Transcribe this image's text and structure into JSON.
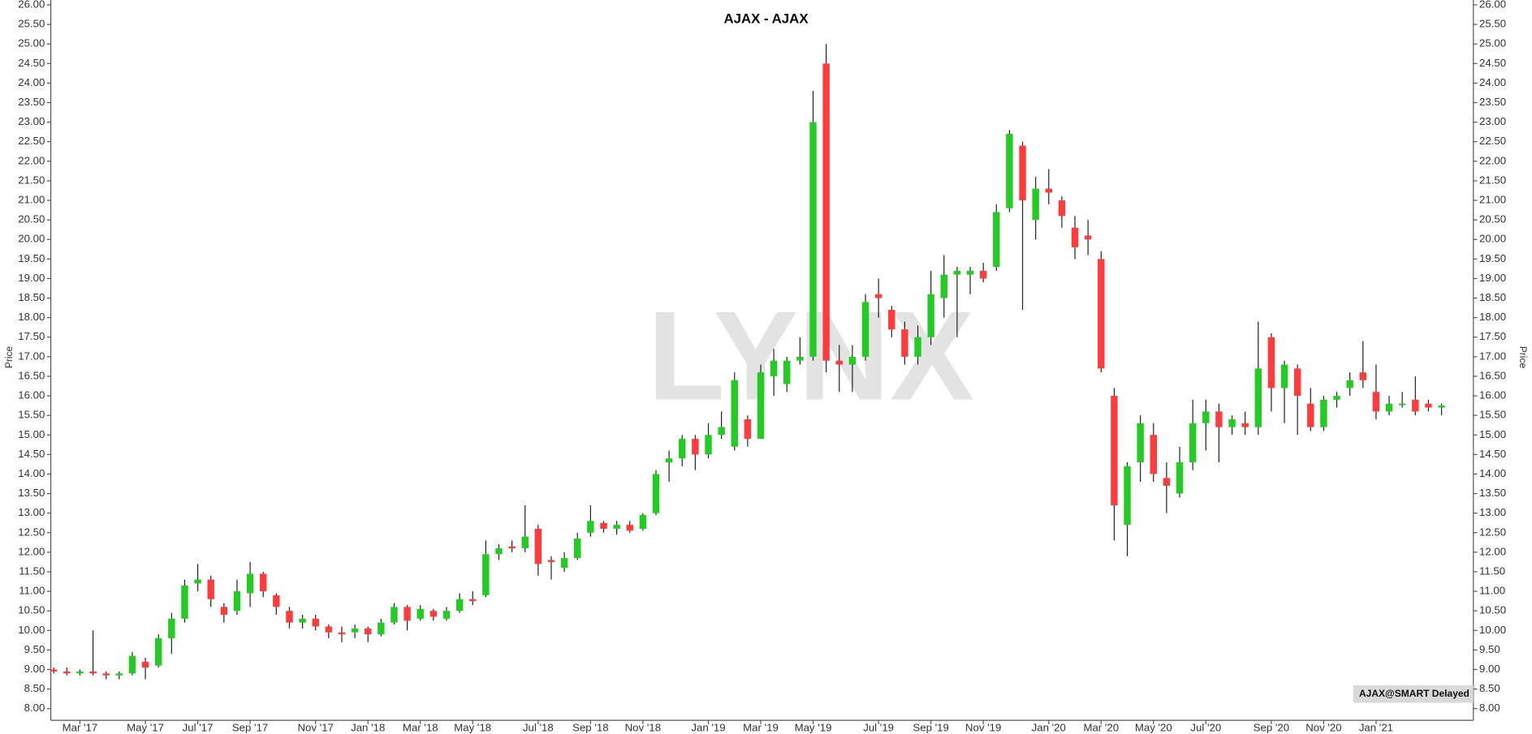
{
  "chart_data": {
    "type": "candlestick",
    "title": "AJAX - AJAX",
    "y_label": "Price",
    "watermark": "LYNX",
    "badge": "AJAX@SMART Delayed",
    "up_color": "#22cc22",
    "down_color": "#ff3b3b",
    "categories": [
      null,
      null,
      "Mar '17",
      null,
      null,
      null,
      null,
      "May '17",
      null,
      null,
      null,
      "Jul '17",
      null,
      null,
      null,
      "Sep '17",
      null,
      null,
      null,
      null,
      "Nov '17",
      null,
      null,
      null,
      "Jan '18",
      null,
      null,
      null,
      "Mar '18",
      null,
      null,
      null,
      "May '18",
      null,
      null,
      null,
      null,
      "Jul '18",
      null,
      null,
      null,
      "Sep '18",
      null,
      null,
      null,
      "Nov '18",
      null,
      null,
      null,
      null,
      "Jan '19",
      null,
      null,
      null,
      "Mar '19",
      null,
      null,
      null,
      "May '19",
      null,
      null,
      null,
      null,
      "Jul '19",
      null,
      null,
      null,
      "Sep '19",
      null,
      null,
      null,
      "Nov '19",
      null,
      null,
      null,
      null,
      "Jan '20",
      null,
      null,
      null,
      "Mar '20",
      null,
      null,
      null,
      "May '20",
      null,
      null,
      null,
      "Jul '20",
      null,
      null,
      null,
      null,
      "Sep '20",
      null,
      null,
      null,
      "Nov '20",
      null,
      null,
      null,
      "Jan '21",
      null,
      null,
      null,
      null,
      null
    ],
    "open": [
      9.0,
      8.95,
      8.9,
      8.95,
      8.9,
      8.85,
      8.9,
      9.2,
      9.1,
      9.8,
      10.3,
      11.2,
      11.3,
      10.6,
      10.5,
      10.95,
      11.45,
      10.9,
      10.5,
      10.2,
      10.3,
      10.1,
      9.95,
      9.95,
      10.05,
      9.9,
      10.2,
      10.6,
      10.3,
      10.5,
      10.3,
      10.5,
      10.8,
      10.9,
      11.95,
      12.15,
      12.1,
      12.6,
      11.8,
      11.6,
      11.85,
      12.5,
      12.75,
      12.6,
      12.7,
      12.6,
      13.0,
      14.3,
      14.4,
      14.9,
      14.5,
      15.0,
      14.7,
      15.4,
      14.9,
      16.5,
      16.3,
      16.9,
      17.0,
      24.5,
      16.9,
      16.8,
      17.0,
      18.6,
      18.2,
      17.7,
      17.0,
      17.5,
      18.5,
      19.1,
      19.1,
      19.2,
      19.3,
      20.8,
      22.4,
      20.5,
      21.3,
      21.0,
      20.3,
      20.1,
      19.5,
      16.0,
      12.7,
      14.3,
      15.0,
      13.9,
      13.5,
      14.3,
      15.3,
      15.6,
      15.2,
      15.3,
      15.2,
      17.5,
      16.2,
      16.7,
      15.8,
      15.2,
      15.9,
      16.2,
      16.6,
      16.1,
      15.6,
      15.8,
      15.9,
      15.8,
      15.7
    ],
    "high": [
      9.05,
      9.05,
      9.0,
      10.0,
      8.95,
      8.95,
      9.45,
      9.3,
      9.9,
      10.45,
      11.3,
      11.7,
      11.4,
      10.7,
      11.3,
      11.75,
      11.5,
      10.95,
      10.6,
      10.4,
      10.4,
      10.15,
      10.1,
      10.15,
      10.1,
      10.3,
      10.7,
      10.65,
      10.65,
      10.55,
      10.6,
      10.95,
      11.0,
      12.3,
      12.2,
      12.3,
      13.2,
      12.7,
      11.9,
      12.0,
      12.5,
      13.2,
      12.8,
      12.8,
      12.8,
      13.0,
      14.1,
      14.6,
      15.0,
      15.0,
      15.3,
      15.6,
      16.6,
      15.5,
      16.8,
      17.2,
      17.0,
      17.5,
      23.8,
      25.0,
      17.3,
      17.3,
      18.6,
      19.0,
      18.3,
      17.9,
      17.8,
      19.2,
      19.6,
      19.3,
      19.3,
      19.4,
      20.9,
      22.8,
      22.5,
      21.6,
      21.8,
      21.1,
      20.6,
      20.5,
      19.7,
      16.2,
      14.3,
      15.5,
      15.3,
      14.3,
      14.7,
      15.9,
      15.9,
      15.8,
      15.5,
      15.6,
      17.9,
      17.6,
      16.9,
      16.8,
      16.2,
      16.0,
      16.1,
      16.6,
      17.4,
      16.8,
      16.0,
      16.1,
      16.5,
      15.9,
      15.8
    ],
    "low": [
      8.9,
      8.85,
      8.85,
      8.85,
      8.75,
      8.75,
      8.85,
      8.75,
      9.05,
      9.4,
      10.2,
      11.0,
      10.6,
      10.2,
      10.4,
      10.6,
      10.85,
      10.4,
      10.05,
      10.05,
      10.0,
      9.8,
      9.7,
      9.8,
      9.7,
      9.85,
      10.15,
      10.0,
      10.25,
      10.25,
      10.25,
      10.45,
      10.65,
      10.85,
      11.8,
      12.0,
      12.0,
      11.4,
      11.3,
      11.5,
      11.8,
      12.4,
      12.5,
      12.45,
      12.5,
      12.55,
      12.95,
      13.8,
      14.2,
      14.1,
      14.4,
      14.9,
      14.6,
      14.7,
      14.9,
      16.0,
      16.1,
      16.8,
      16.9,
      16.6,
      16.1,
      16.1,
      16.9,
      18.0,
      17.5,
      16.8,
      16.8,
      17.3,
      18.0,
      17.5,
      18.6,
      18.9,
      19.2,
      20.7,
      18.2,
      20.0,
      20.9,
      20.3,
      19.5,
      19.6,
      16.6,
      12.3,
      11.9,
      13.8,
      13.8,
      13.0,
      13.4,
      14.1,
      14.6,
      14.3,
      15.0,
      15.0,
      15.0,
      15.6,
      15.3,
      15.0,
      15.1,
      15.1,
      15.7,
      16.0,
      16.2,
      15.4,
      15.5,
      15.7,
      15.5,
      15.6,
      15.5
    ],
    "close": [
      8.95,
      8.9,
      8.95,
      8.9,
      8.85,
      8.9,
      9.35,
      9.05,
      9.8,
      10.3,
      11.15,
      11.3,
      10.8,
      10.4,
      11.0,
      11.45,
      11.0,
      10.6,
      10.2,
      10.3,
      10.1,
      9.95,
      9.9,
      10.05,
      9.9,
      10.2,
      10.6,
      10.25,
      10.55,
      10.35,
      10.5,
      10.8,
      10.75,
      11.95,
      12.1,
      12.1,
      12.4,
      11.7,
      11.75,
      11.85,
      12.35,
      12.8,
      12.6,
      12.7,
      12.55,
      12.95,
      14.0,
      14.4,
      14.9,
      14.5,
      15.0,
      15.2,
      16.4,
      14.9,
      16.6,
      16.9,
      16.9,
      17.0,
      23.0,
      16.9,
      16.8,
      17.0,
      18.4,
      18.5,
      17.7,
      17.0,
      17.5,
      18.6,
      19.1,
      19.2,
      19.2,
      19.0,
      20.7,
      22.7,
      21.0,
      21.3,
      21.2,
      20.6,
      19.8,
      20.0,
      16.7,
      13.2,
      14.2,
      15.3,
      14.0,
      13.7,
      14.3,
      15.3,
      15.6,
      15.2,
      15.4,
      15.2,
      16.7,
      16.2,
      16.8,
      16.0,
      15.2,
      15.9,
      16.0,
      16.4,
      16.4,
      15.6,
      15.8,
      15.8,
      15.6,
      15.7,
      15.75
    ],
    "ylim": [
      7.7,
      26
    ],
    "yticks": [
      {
        "value": 8,
        "label": "8.00"
      },
      {
        "value": 8.5,
        "label": "8.50"
      },
      {
        "value": 9,
        "label": "9.00"
      },
      {
        "value": 9.5,
        "label": "9.50"
      },
      {
        "value": 10,
        "label": "10.00"
      },
      {
        "value": 10.5,
        "label": "10.50"
      },
      {
        "value": 11,
        "label": "11.00"
      },
      {
        "value": 11.5,
        "label": "11.50"
      },
      {
        "value": 12,
        "label": "12.00"
      },
      {
        "value": 12.5,
        "label": "12.50"
      },
      {
        "value": 13,
        "label": "13.00"
      },
      {
        "value": 13.5,
        "label": "13.50"
      },
      {
        "value": 14,
        "label": "14.00"
      },
      {
        "value": 14.5,
        "label": "14.50"
      },
      {
        "value": 15,
        "label": "15.00"
      },
      {
        "value": 15.5,
        "label": "15.50"
      },
      {
        "value": 16,
        "label": "16.00"
      },
      {
        "value": 16.5,
        "label": "16.50"
      },
      {
        "value": 17,
        "label": "17.00"
      },
      {
        "value": 17.5,
        "label": "17.50"
      },
      {
        "value": 18,
        "label": "18.00"
      },
      {
        "value": 18.5,
        "label": "18.50"
      },
      {
        "value": 19,
        "label": "19.00"
      },
      {
        "value": 19.5,
        "label": "19.50"
      },
      {
        "value": 20,
        "label": "20.00"
      },
      {
        "value": 20.5,
        "label": "20.50"
      },
      {
        "value": 21,
        "label": "21.00"
      },
      {
        "value": 21.5,
        "label": "21.50"
      },
      {
        "value": 22,
        "label": "22.00"
      },
      {
        "value": 22.5,
        "label": "22.50"
      },
      {
        "value": 23,
        "label": "23.00"
      },
      {
        "value": 23.5,
        "label": "23.50"
      },
      {
        "value": 24,
        "label": "24.00"
      },
      {
        "value": 24.5,
        "label": "24.50"
      },
      {
        "value": 25,
        "label": "25.00"
      },
      {
        "value": 25.5,
        "label": "25.50"
      },
      {
        "value": 26,
        "label": "26.00"
      }
    ],
    "grid": false
  }
}
